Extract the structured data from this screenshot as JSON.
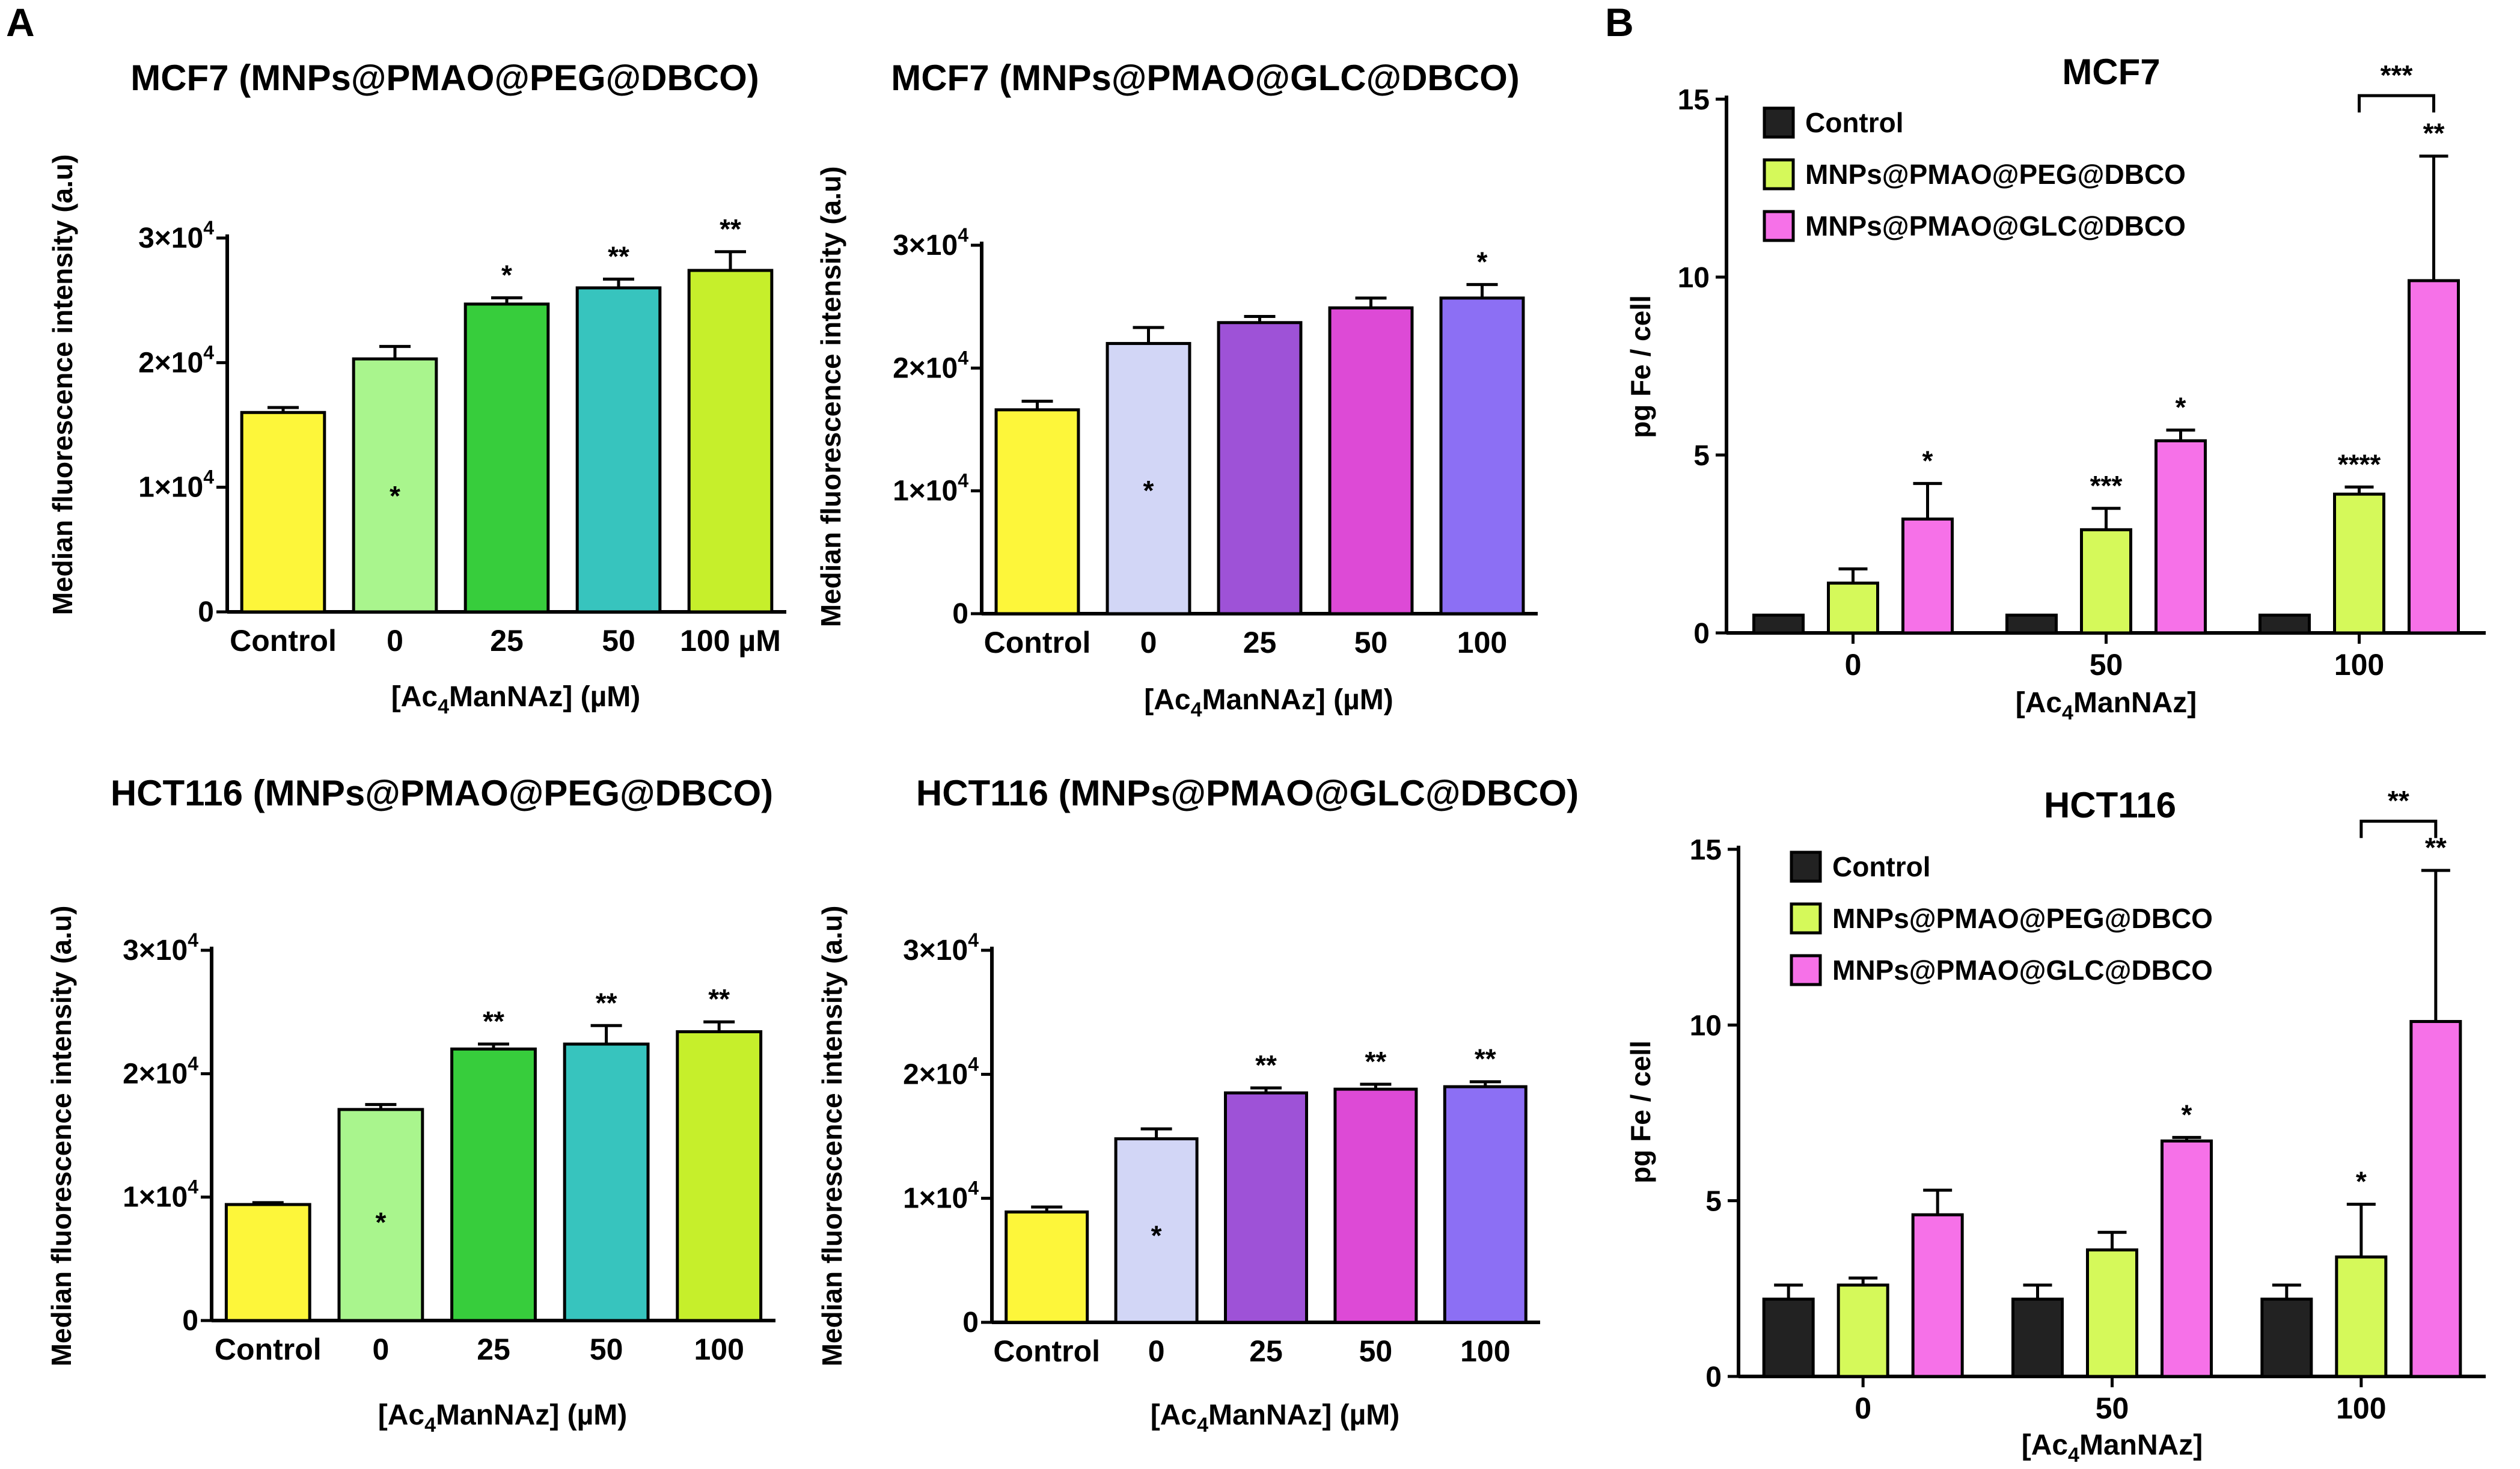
{
  "panel_labels": [
    "A",
    "B"
  ],
  "colors": {
    "control": "#222222",
    "yellow": "#fdf63a",
    "light_green": "#a9f58d",
    "green": "#37cd3c",
    "teal": "#37c4be",
    "lime": "#c6ef2b",
    "lavender": "#d2d6f6",
    "purple": "#9e52d7",
    "magenta": "#dd4ad6",
    "blue_violet": "#8c6ff4",
    "peg_green": "#d5f95a",
    "pink": "#f671e8"
  },
  "chart_data": [
    {
      "id": "a1",
      "type": "bar",
      "title": "MCF7 (MNPs@PMAO@PEG@DBCO)",
      "xlabel": "[Ac4ManNAz] (µM)",
      "ylabel": "Median fluorescence intensity (a.u)",
      "ylim": [
        0,
        30000
      ],
      "yticks": [
        0,
        10000,
        20000,
        30000
      ],
      "ytick_labels": [
        {
          "base": "0",
          "exp": ""
        },
        {
          "base": "1×10",
          "exp": "4"
        },
        {
          "base": "2×10",
          "exp": "4"
        },
        {
          "base": "3×10",
          "exp": "4"
        }
      ],
      "categories": [
        "Control",
        "0",
        "25",
        "50",
        "100 µM"
      ],
      "values": [
        16000,
        20300,
        24700,
        26000,
        27400
      ],
      "errors": [
        400,
        1000,
        500,
        700,
        1500
      ],
      "colors": [
        "#fdf63a",
        "#a9f58d",
        "#37cd3c",
        "#37c4be",
        "#c6ef2b"
      ],
      "significance": [
        "",
        "*",
        "*",
        "**",
        "**"
      ],
      "sig_inside": [
        false,
        true,
        false,
        false,
        false
      ]
    },
    {
      "id": "a2",
      "type": "bar",
      "title": "MCF7 (MNPs@PMAO@GLC@DBCO)",
      "xlabel": "[Ac4ManNAz] (µM)",
      "ylabel": "Median fluorescence intensity (a.u)",
      "ylim": [
        0,
        30000
      ],
      "yticks": [
        0,
        10000,
        20000,
        30000
      ],
      "ytick_labels": [
        {
          "base": "0",
          "exp": ""
        },
        {
          "base": "1×10",
          "exp": "4"
        },
        {
          "base": "2×10",
          "exp": "4"
        },
        {
          "base": "3×10",
          "exp": "4"
        }
      ],
      "categories": [
        "Control",
        "0",
        "25",
        "50",
        "100"
      ],
      "values": [
        16600,
        22000,
        23700,
        24900,
        25700
      ],
      "errors": [
        700,
        1300,
        500,
        800,
        1100
      ],
      "colors": [
        "#fdf63a",
        "#d2d6f6",
        "#9e52d7",
        "#dd4ad6",
        "#8c6ff4"
      ],
      "significance": [
        "",
        "*",
        "",
        "",
        "*"
      ],
      "sig_inside": [
        false,
        true,
        false,
        false,
        false
      ]
    },
    {
      "id": "a3",
      "type": "bar",
      "title": "HCT116 (MNPs@PMAO@PEG@DBCO)",
      "xlabel": "[Ac4ManNAz] (µM)",
      "ylabel": "Median fluorescence intensity (a.u)",
      "ylim": [
        0,
        30000
      ],
      "yticks": [
        0,
        10000,
        20000,
        30000
      ],
      "ytick_labels": [
        {
          "base": "0",
          "exp": ""
        },
        {
          "base": "1×10",
          "exp": "4"
        },
        {
          "base": "2×10",
          "exp": "4"
        },
        {
          "base": "3×10",
          "exp": "4"
        }
      ],
      "categories": [
        "Control",
        "0",
        "25",
        "50",
        "100"
      ],
      "values": [
        9400,
        17100,
        22000,
        22400,
        23400
      ],
      "errors": [
        150,
        400,
        400,
        1500,
        800
      ],
      "colors": [
        "#fdf63a",
        "#a9f58d",
        "#37cd3c",
        "#37c4be",
        "#c6ef2b"
      ],
      "significance": [
        "",
        "*",
        "**",
        "**",
        "**"
      ],
      "sig_inside": [
        false,
        true,
        false,
        false,
        false
      ]
    },
    {
      "id": "a4",
      "type": "bar",
      "title": "HCT116 (MNPs@PMAO@GLC@DBCO)",
      "xlabel": "[Ac4ManNAz] (µM)",
      "ylabel": "Median fluorescence intensity (a.u)",
      "ylim": [
        0,
        30000
      ],
      "yticks": [
        0,
        10000,
        20000,
        30000
      ],
      "ytick_labels": [
        {
          "base": "0",
          "exp": ""
        },
        {
          "base": "1×10",
          "exp": "4"
        },
        {
          "base": "2×10",
          "exp": "4"
        },
        {
          "base": "3×10",
          "exp": "4"
        }
      ],
      "categories": [
        "Control",
        "0",
        "25",
        "50",
        "100"
      ],
      "values": [
        8900,
        14800,
        18500,
        18800,
        19000
      ],
      "errors": [
        400,
        800,
        400,
        400,
        400
      ],
      "colors": [
        "#fdf63a",
        "#d2d6f6",
        "#9e52d7",
        "#dd4ad6",
        "#8c6ff4"
      ],
      "significance": [
        "",
        "*",
        "**",
        "**",
        "**"
      ],
      "sig_inside": [
        false,
        true,
        false,
        false,
        false
      ]
    },
    {
      "id": "b1",
      "type": "bar",
      "title": "MCF7",
      "xlabel": "[Ac4ManNAz]",
      "ylabel": "pg Fe / cell",
      "ylim": [
        0,
        15
      ],
      "yticks": [
        0,
        5,
        10,
        15
      ],
      "categories": [
        "0",
        "50",
        "100"
      ],
      "legend_position": "top-left",
      "series": [
        {
          "name": "Control",
          "color": "#222222",
          "values": [
            0.5,
            0.5,
            0.5
          ],
          "errors": [
            0,
            0,
            0
          ],
          "significance": [
            "",
            "",
            ""
          ]
        },
        {
          "name": "MNPs@PMAO@PEG@DBCO",
          "color": "#d5f95a",
          "values": [
            1.4,
            2.9,
            3.9
          ],
          "errors": [
            0.4,
            0.6,
            0.2
          ],
          "significance": [
            "",
            "***",
            "****"
          ]
        },
        {
          "name": "MNPs@PMAO@GLC@DBCO",
          "color": "#f671e8",
          "values": [
            3.2,
            5.4,
            9.9
          ],
          "errors": [
            1.0,
            0.3,
            3.5
          ],
          "significance": [
            "*",
            "*",
            "**"
          ]
        }
      ],
      "bracket": {
        "category_index": 2,
        "from_series": 1,
        "to_series": 2,
        "y": 15.1,
        "label": "***"
      }
    },
    {
      "id": "b2",
      "type": "bar",
      "title": "HCT116",
      "xlabel": "[Ac4ManNAz]",
      "ylabel": "pg Fe / cell",
      "ylim": [
        0,
        15
      ],
      "yticks": [
        0,
        5,
        10,
        15
      ],
      "categories": [
        "0",
        "50",
        "100"
      ],
      "legend_position": "top-left",
      "series": [
        {
          "name": "Control",
          "color": "#222222",
          "values": [
            2.2,
            2.2,
            2.2
          ],
          "errors": [
            0.4,
            0.4,
            0.4
          ],
          "significance": [
            "",
            "",
            ""
          ]
        },
        {
          "name": "MNPs@PMAO@PEG@DBCO",
          "color": "#d5f95a",
          "values": [
            2.6,
            3.6,
            3.4
          ],
          "errors": [
            0.2,
            0.5,
            1.5
          ],
          "significance": [
            "",
            "",
            "*"
          ]
        },
        {
          "name": "MNPs@PMAO@GLC@DBCO",
          "color": "#f671e8",
          "values": [
            4.6,
            6.7,
            10.1
          ],
          "errors": [
            0.7,
            0.1,
            4.3
          ],
          "significance": [
            "",
            "*",
            "**"
          ]
        }
      ],
      "bracket": {
        "category_index": 2,
        "from_series": 1,
        "to_series": 2,
        "y": 15.8,
        "label": "**"
      }
    }
  ]
}
